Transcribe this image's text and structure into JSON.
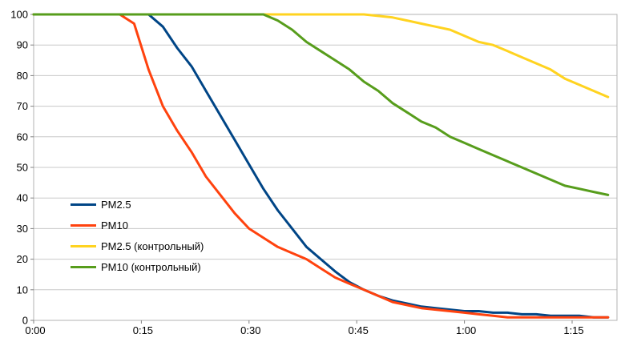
{
  "chart_data": {
    "type": "line",
    "title": "",
    "xlabel": "",
    "ylabel": "",
    "ylim": [
      0,
      100
    ],
    "y_tick_step": 10,
    "y_ticks": [
      0,
      10,
      20,
      30,
      40,
      50,
      60,
      70,
      80,
      90,
      100
    ],
    "y_tick_labels": [
      "0",
      "10",
      "20",
      "30",
      "40",
      "50",
      "60",
      "70",
      "80",
      "90",
      "100"
    ],
    "x_ticks": [
      {
        "minute": 0,
        "label": "0:00"
      },
      {
        "minute": 15,
        "label": "0:15"
      },
      {
        "minute": 30,
        "label": "0:30"
      },
      {
        "minute": 45,
        "label": "0:45"
      },
      {
        "minute": 60,
        "label": "1:00"
      },
      {
        "minute": 75,
        "label": "1:15"
      }
    ],
    "x_minutes": [
      0,
      2,
      4,
      6,
      8,
      10,
      12,
      14,
      16,
      18,
      20,
      22,
      24,
      26,
      28,
      30,
      32,
      34,
      36,
      38,
      40,
      42,
      44,
      46,
      48,
      50,
      52,
      54,
      56,
      58,
      60,
      62,
      64,
      66,
      68,
      70,
      72,
      74,
      76,
      78,
      80
    ],
    "grid": "horizontal",
    "legend_position": "inside-left",
    "series": [
      {
        "name": "PM2.5",
        "color": "#004586",
        "values": [
          100,
          100,
          100,
          100,
          100,
          100,
          100,
          100,
          100,
          96,
          89,
          83,
          75,
          67,
          59,
          51,
          43,
          36,
          30,
          24,
          20,
          16,
          12.5,
          10,
          8,
          6.5,
          5.5,
          4.5,
          4,
          3.5,
          3,
          3,
          2.5,
          2.5,
          2,
          2,
          1.5,
          1.5,
          1.5,
          1,
          1
        ]
      },
      {
        "name": "PM10",
        "color": "#ff420e",
        "values": [
          100,
          100,
          100,
          100,
          100,
          100,
          100,
          97,
          82,
          70,
          62,
          55,
          47,
          41,
          35,
          30,
          27,
          24,
          22,
          20,
          17,
          14,
          12,
          10,
          8,
          6,
          5,
          4,
          3.5,
          3,
          2.5,
          2,
          1.5,
          1,
          1,
          1,
          1,
          1,
          1,
          1,
          1
        ]
      },
      {
        "name": "PM2.5 (контрольный)",
        "color": "#ffd320",
        "values": [
          100,
          100,
          100,
          100,
          100,
          100,
          100,
          100,
          100,
          100,
          100,
          100,
          100,
          100,
          100,
          100,
          100,
          100,
          100,
          100,
          100,
          100,
          100,
          100,
          99.5,
          99,
          98,
          97,
          96,
          95,
          93,
          91,
          90,
          88,
          86,
          84,
          82,
          79,
          77,
          75,
          73
        ]
      },
      {
        "name": "PM10 (контрольный)",
        "color": "#579d1c",
        "values": [
          100,
          100,
          100,
          100,
          100,
          100,
          100,
          100,
          100,
          100,
          100,
          100,
          100,
          100,
          100,
          100,
          100,
          98,
          95,
          91,
          88,
          85,
          82,
          78,
          75,
          71,
          68,
          65,
          63,
          60,
          58,
          56,
          54,
          52,
          50,
          48,
          46,
          44,
          43,
          42,
          41
        ]
      }
    ],
    "colors": {
      "grid": "#c8c8c8",
      "axis": "#808080",
      "border": "#b3b3b3",
      "background": "#ffffff"
    }
  }
}
